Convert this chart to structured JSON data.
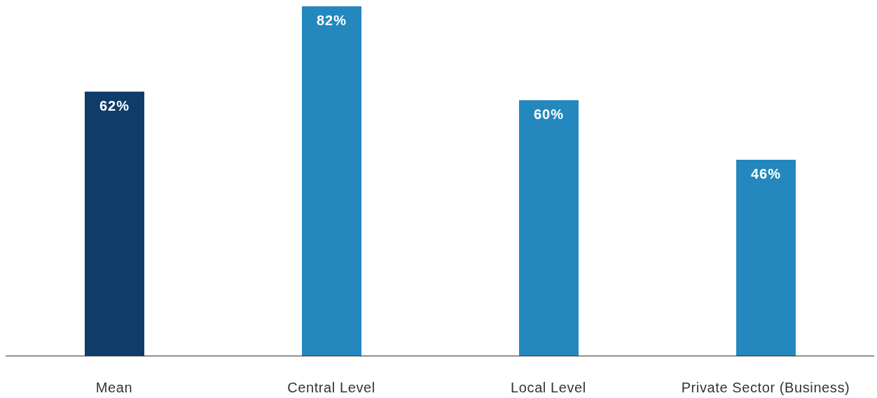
{
  "chart_data": {
    "type": "bar",
    "categories": [
      "Mean",
      "Central Level",
      "Local Level",
      "Private Sector (Business)"
    ],
    "values": [
      62,
      82,
      60,
      46
    ],
    "colors": [
      "#0d3d68",
      "#2488bf",
      "#2488bf",
      "#2488bf"
    ],
    "value_labels": [
      "62%",
      "82%",
      "60%",
      "46%"
    ],
    "tick_labels": "x"
  }
}
